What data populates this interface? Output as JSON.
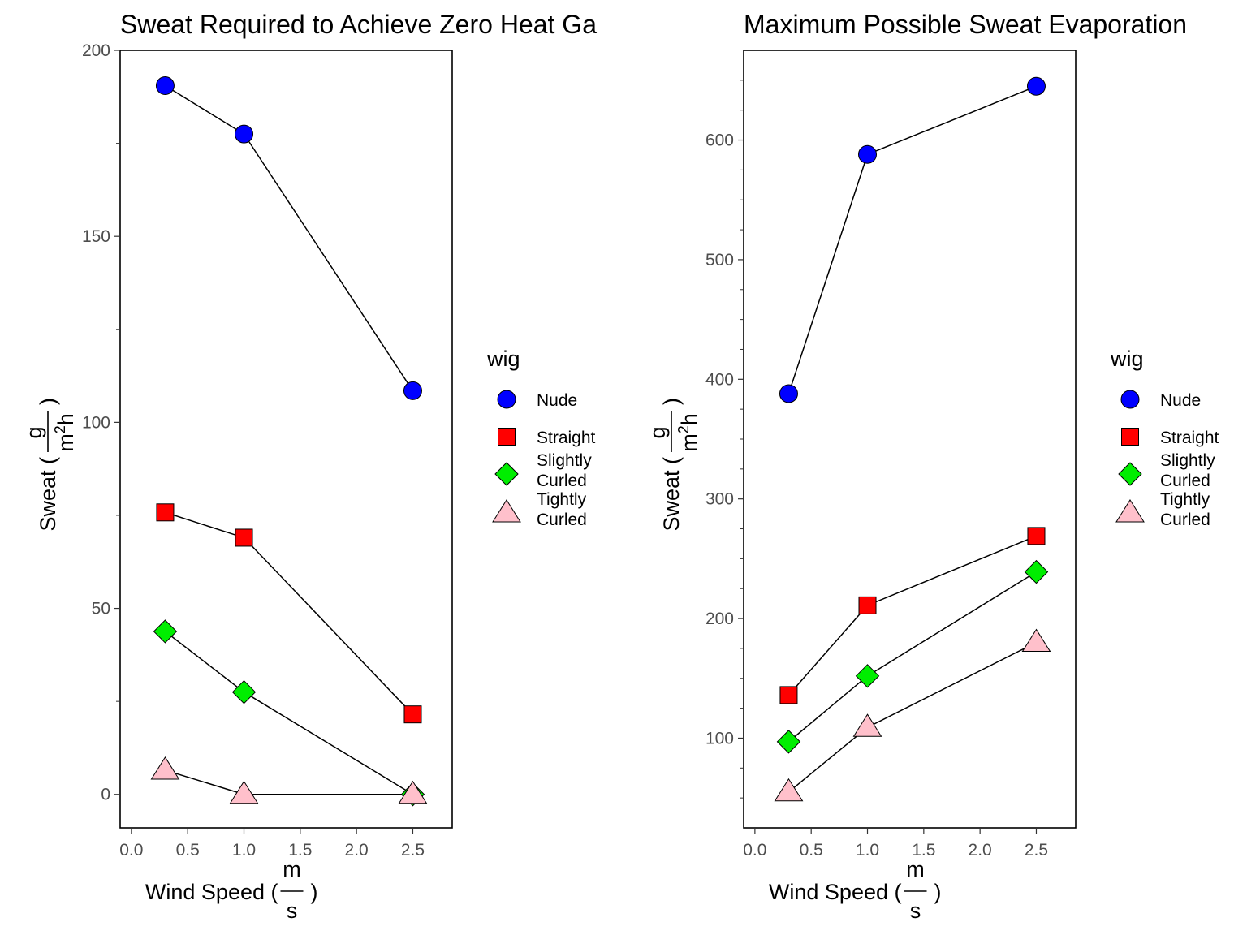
{
  "chart_data": [
    {
      "type": "line",
      "title": "Sweat Required to Achieve Zero Heat Ga",
      "xlabel": "Wind Speed ( m / s )",
      "ylabel": "Sweat ( g / m²h )",
      "x_ticks": [
        "0.0",
        "0.5",
        "1.0",
        "1.5",
        "2.0",
        "2.5"
      ],
      "y_ticks": [
        "0",
        "50",
        "100",
        "150",
        "200"
      ],
      "xlim": [
        -0.1,
        2.85
      ],
      "ylim": [
        -9,
        200
      ],
      "x": [
        0.3,
        1.0,
        2.5
      ],
      "legend_title": "wig",
      "legend_position": "right",
      "series": [
        {
          "name": "Nude",
          "shape": "circle",
          "color": "#0000ff",
          "values": [
            190.5,
            177.5,
            108.5
          ]
        },
        {
          "name": "Straight",
          "shape": "square",
          "color": "#ff0000",
          "values": [
            75.8,
            69.0,
            21.5
          ]
        },
        {
          "name": "Slightly Curled",
          "shape": "diamond",
          "color": "#00ee00",
          "values": [
            43.8,
            27.5,
            0
          ]
        },
        {
          "name": "Tightly Curled",
          "shape": "triangle",
          "color": "#ffc0cb",
          "values": [
            6.5,
            0,
            0
          ]
        }
      ]
    },
    {
      "type": "line",
      "title": "Maximum Possible Sweat Evaporation",
      "xlabel": "Wind Speed ( m / s )",
      "ylabel": "Sweat ( g / m²h )",
      "x_ticks": [
        "0.0",
        "0.5",
        "1.0",
        "1.5",
        "2.0",
        "2.5"
      ],
      "y_ticks": [
        "100",
        "200",
        "300",
        "400",
        "500",
        "600"
      ],
      "xlim": [
        -0.1,
        2.85
      ],
      "ylim": [
        25,
        675
      ],
      "x": [
        0.3,
        1.0,
        2.5
      ],
      "legend_title": "wig",
      "legend_position": "right",
      "series": [
        {
          "name": "Nude",
          "shape": "circle",
          "color": "#0000ff",
          "values": [
            388,
            588,
            645
          ]
        },
        {
          "name": "Straight",
          "shape": "square",
          "color": "#ff0000",
          "values": [
            136,
            211,
            269
          ]
        },
        {
          "name": "Slightly Curled",
          "shape": "diamond",
          "color": "#00ee00",
          "values": [
            97,
            152,
            239
          ]
        },
        {
          "name": "Tightly Curled",
          "shape": "triangle",
          "color": "#ffc0cb",
          "values": [
            55,
            109,
            180
          ]
        }
      ]
    }
  ]
}
